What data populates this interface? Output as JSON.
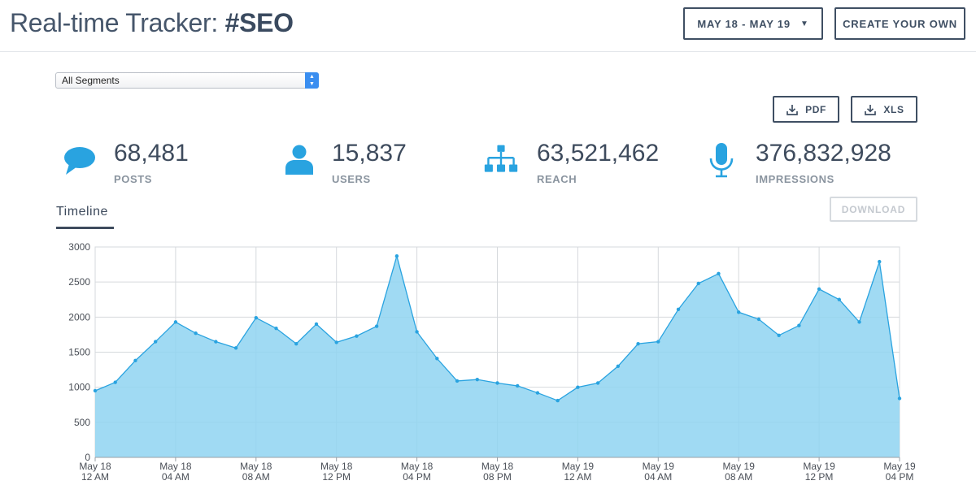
{
  "header": {
    "title_prefix": "Real-time Tracker: ",
    "title_hashtag": "#SEO",
    "date_range_label": "MAY 18 - MAY 19",
    "create_label": "CREATE YOUR OWN"
  },
  "filters": {
    "segment_value": "All Segments"
  },
  "export": {
    "pdf_label": "PDF",
    "xls_label": "XLS"
  },
  "stats": [
    {
      "value": "68,481",
      "label": "POSTS",
      "icon": "speech-bubble-icon"
    },
    {
      "value": "15,837",
      "label": "USERS",
      "icon": "user-icon"
    },
    {
      "value": "63,521,462",
      "label": "REACH",
      "icon": "sitemap-icon"
    },
    {
      "value": "376,832,928",
      "label": "IMPRESSIONS",
      "icon": "microphone-icon"
    }
  ],
  "tabs": {
    "timeline_label": "Timeline",
    "download_label": "DOWNLOAD"
  },
  "colors": {
    "accent": "#29a3e0",
    "fill": "#8fd3f1",
    "text": "#3e4b5d"
  },
  "chart_data": {
    "type": "area",
    "ylim": [
      0,
      3000
    ],
    "yticks": [
      0,
      500,
      1000,
      1500,
      2000,
      2500,
      3000
    ],
    "xticks": [
      {
        "i": 0,
        "line1": "May 18",
        "line2": "12 AM"
      },
      {
        "i": 4,
        "line1": "May 18",
        "line2": "04 AM"
      },
      {
        "i": 8,
        "line1": "May 18",
        "line2": "08 AM"
      },
      {
        "i": 12,
        "line1": "May 18",
        "line2": "12 PM"
      },
      {
        "i": 16,
        "line1": "May 18",
        "line2": "04 PM"
      },
      {
        "i": 20,
        "line1": "May 18",
        "line2": "08 PM"
      },
      {
        "i": 24,
        "line1": "May 19",
        "line2": "12 AM"
      },
      {
        "i": 28,
        "line1": "May 19",
        "line2": "04 AM"
      },
      {
        "i": 32,
        "line1": "May 19",
        "line2": "08 AM"
      },
      {
        "i": 36,
        "line1": "May 19",
        "line2": "12 PM"
      },
      {
        "i": 40,
        "line1": "May 19",
        "line2": "04 PM"
      }
    ],
    "values": [
      950,
      1070,
      1380,
      1650,
      1930,
      1770,
      1650,
      1560,
      1990,
      1840,
      1620,
      1900,
      1640,
      1730,
      1870,
      2870,
      1790,
      1410,
      1090,
      1110,
      1060,
      1020,
      920,
      810,
      1000,
      1060,
      1300,
      1620,
      1650,
      2110,
      2480,
      2620,
      2070,
      1970,
      1740,
      1880,
      2400,
      2250,
      1930,
      2790,
      840
    ]
  }
}
